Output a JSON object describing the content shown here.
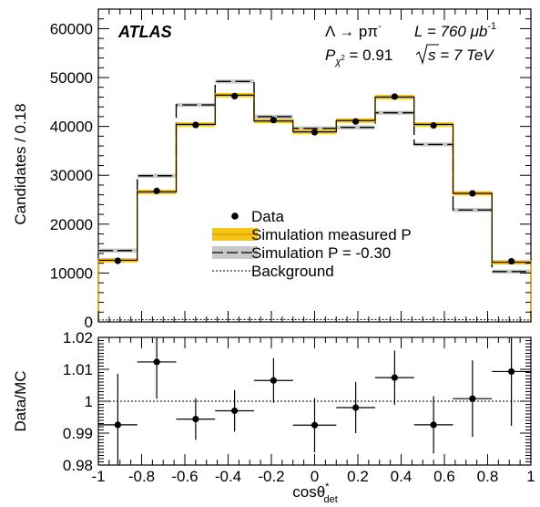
{
  "chart_data": [
    {
      "type": "line",
      "panel": "main",
      "ylabel": "Candidates / 0.18",
      "ylim": [
        0,
        64000
      ],
      "xlim": [
        -1,
        1
      ],
      "y_ticks": [
        0,
        10000,
        20000,
        30000,
        40000,
        50000,
        60000
      ],
      "y_tick_labels": [
        "0",
        "10000",
        "20000",
        "30000",
        "40000",
        "50000",
        "60000"
      ],
      "bin_edges": [
        -1.0,
        -0.82,
        -0.64,
        -0.46,
        -0.28,
        -0.1,
        0.1,
        0.28,
        0.46,
        0.64,
        0.82,
        1.0
      ],
      "series": [
        {
          "name": "Data",
          "style": "points",
          "x": [
            -0.91,
            -0.73,
            -0.55,
            -0.37,
            -0.19,
            0.0,
            0.19,
            0.37,
            0.55,
            0.73,
            0.91
          ],
          "values": [
            12500,
            26800,
            40300,
            46200,
            41300,
            38800,
            41000,
            46100,
            40200,
            26300,
            12400
          ]
        },
        {
          "name": "Simulation measured P",
          "style": "step-band",
          "values": [
            12600,
            26600,
            40400,
            46400,
            41100,
            38900,
            41200,
            46000,
            40400,
            26300,
            12200
          ]
        },
        {
          "name": "Simulation P = -0.30",
          "style": "step-dashed",
          "values": [
            14600,
            29900,
            44400,
            49200,
            42000,
            39600,
            39800,
            42800,
            36300,
            22900,
            10300
          ]
        },
        {
          "name": "Background",
          "style": "step-dotted",
          "values": [
            400,
            450,
            500,
            500,
            500,
            500,
            500,
            500,
            500,
            450,
            400
          ]
        }
      ],
      "annotations": {
        "experiment": "ATLAS",
        "decay": "Λ → pπ",
        "decay_sup": "-",
        "luminosity_prefix": "L = 760 μb",
        "luminosity_sup": "-1",
        "chi2_label": "P",
        "chi2_sub": "χ",
        "chi2_subsup": "2",
        "chi2_value": " = 0.91",
        "energy_text": "s = 7 TeV"
      },
      "legend_placement": "center",
      "colors": {
        "band": "#f5c518",
        "band_line": "#e8a200",
        "alt_band": "#c8c8c8"
      }
    },
    {
      "type": "scatter",
      "panel": "ratio",
      "ylabel": "Data/MC",
      "xlabel": "cosθ",
      "xlabel_sup": "*",
      "xlabel_sub": "det",
      "xlim": [
        -1,
        1
      ],
      "ylim": [
        0.98,
        1.02
      ],
      "reference_line": 1,
      "x_ticks": [
        -1,
        -0.8,
        -0.6,
        -0.4,
        -0.2,
        0,
        0.2,
        0.4,
        0.6,
        0.8,
        1
      ],
      "x_tick_labels": [
        "-1",
        "-0.8",
        "-0.6",
        "-0.4",
        "-0.2",
        "0",
        "0.2",
        "0.4",
        "0.6",
        "0.8",
        "1"
      ],
      "y_ticks": [
        0.98,
        0.99,
        1,
        1.01,
        1.02
      ],
      "y_tick_labels": [
        "0.98",
        "0.99",
        "1",
        "1.01",
        "1.02"
      ],
      "points": {
        "x": [
          -0.91,
          -0.73,
          -0.55,
          -0.37,
          -0.19,
          0.0,
          0.19,
          0.37,
          0.55,
          0.73,
          0.91
        ],
        "y": [
          0.9926,
          1.0123,
          0.9944,
          0.997,
          1.0065,
          0.9925,
          0.998,
          1.0074,
          0.9926,
          1.0008,
          1.0093
        ],
        "err": [
          0.016,
          0.0115,
          0.0065,
          0.0065,
          0.007,
          0.0085,
          0.008,
          0.0085,
          0.009,
          0.012,
          0.017
        ]
      }
    }
  ]
}
